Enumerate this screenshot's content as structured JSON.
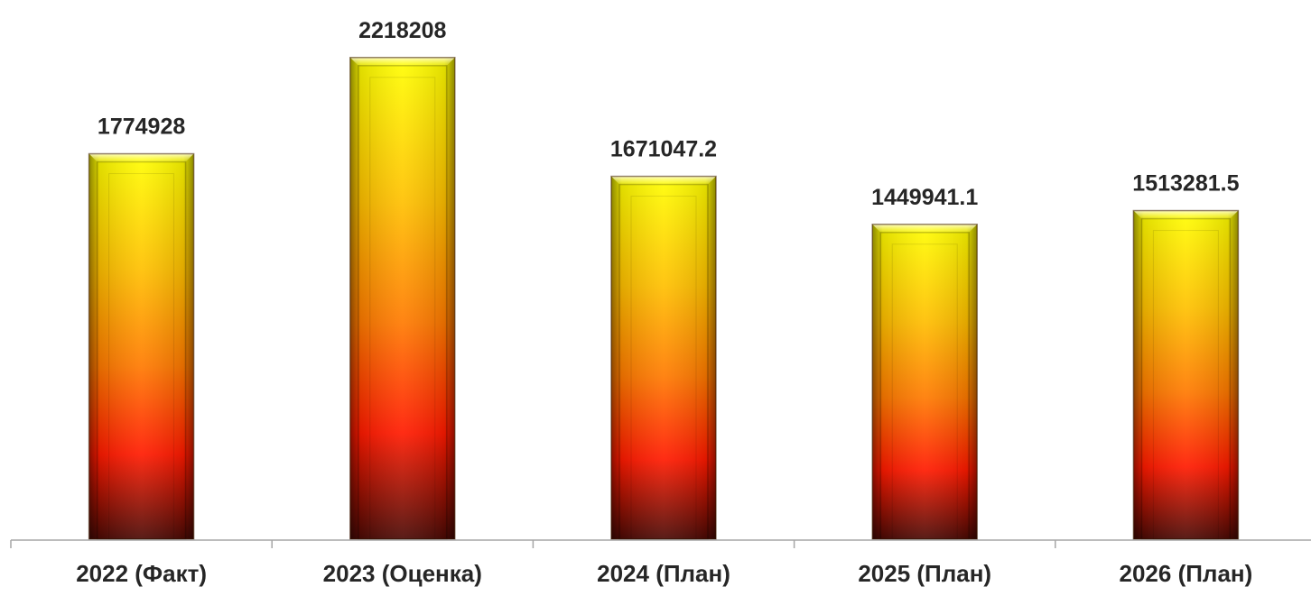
{
  "chart_data": {
    "type": "bar",
    "title": "",
    "xlabel": "",
    "ylabel": "",
    "categories": [
      "2022 (Факт)",
      "2023 (Оценка)",
      "2024 (План)",
      "2025 (План)",
      "2026 (План)"
    ],
    "values": [
      1774928,
      2218208,
      1671047.2,
      1449941.1,
      1513281.5
    ],
    "value_labels": [
      "1774928",
      "2218208",
      "1671047.2",
      "1449941.1",
      "1513281.5"
    ],
    "ylim": [
      0,
      2400000
    ],
    "grid": false,
    "legend": "none",
    "colors": {
      "bar_top": "#ffff00",
      "bar_mid_orange": "#ff9900",
      "bar_red": "#ff1a00",
      "bar_bottom": "#4a0a05",
      "axis": "#a6a6a6",
      "text": "#262626"
    }
  }
}
